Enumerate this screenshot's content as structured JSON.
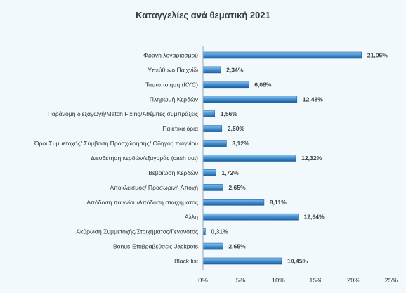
{
  "chart_data": {
    "type": "bar",
    "orientation": "horizontal",
    "title": "Καταγγελίες ανά θεματική 2021",
    "categories": [
      "Φραγή λογαριασμού",
      "Υπεύθυνο Παιχνίδι",
      "Ταυτοποίηση (KYC)",
      "Πληρωμή Κερδών",
      "Παράνομη διεξαγωγή/Match Fixing/Αθέμιτες συμπράξεις",
      "Παικτικά όρια",
      "Όροι Συμμετοχής/ Σύμβαση Προσχώρησης/ Οδηγός παιγνίου",
      "Διευθέτηση κερδών/εξαγοράς (cash out)",
      "Βεβαίωση Κερδών",
      "Αποκλεισμός/ Προσωρινή Αποχή",
      "Απόδοση παιγνίου/Απόδοση στοιχήματος",
      "Άλλη",
      "Ακύρωση Συμμετοχής/Στοιχήματος/Γεγονότος",
      "Bonus-Επιβραβεύσεις-Jackpots",
      "Black list"
    ],
    "values": [
      21.06,
      2.34,
      6.08,
      12.48,
      1.56,
      2.5,
      3.12,
      12.32,
      1.72,
      2.65,
      8.11,
      12.64,
      0.31,
      2.65,
      10.45
    ],
    "value_labels": [
      "21,06%",
      "2,34%",
      "6,08%",
      "12,48%",
      "1,56%",
      "2,50%",
      "3,12%",
      "12,32%",
      "1,72%",
      "2,65%",
      "8,11%",
      "12,64%",
      "0,31%",
      "2,65%",
      "10,45%"
    ],
    "x_ticks": [
      0,
      5,
      10,
      15,
      20,
      25
    ],
    "x_tick_labels": [
      "0%",
      "5%",
      "10%",
      "15%",
      "20%",
      "25%"
    ],
    "xlim": [
      0,
      25
    ],
    "grid": false,
    "legend": "none",
    "colors": {
      "bar_light": "#8ec6ef",
      "bar_mid": "#4a95d4",
      "bar_dark": "#1f5f9e",
      "background": "#f2f9fd",
      "axis": "#9aa7b3"
    }
  }
}
